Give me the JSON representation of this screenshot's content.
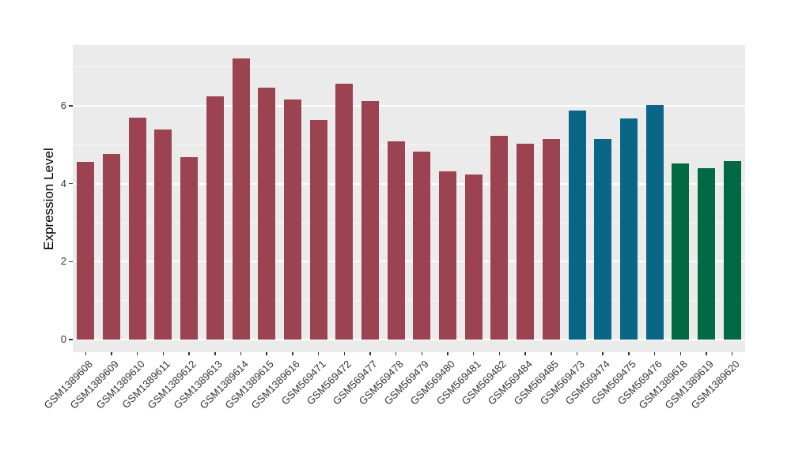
{
  "chart_data": {
    "type": "bar",
    "title": "",
    "xlabel": "",
    "ylabel": "Expression Level",
    "categories": [
      "GSM1389608",
      "GSM1389609",
      "GSM1389610",
      "GSM1389611",
      "GSM1389612",
      "GSM1389613",
      "GSM1389614",
      "GSM1389615",
      "GSM1389616",
      "GSM569471",
      "GSM569472",
      "GSM569477",
      "GSM569478",
      "GSM569479",
      "GSM569480",
      "GSM569481",
      "GSM569482",
      "GSM569484",
      "GSM569485",
      "GSM569473",
      "GSM569474",
      "GSM569475",
      "GSM569476",
      "GSM1389618",
      "GSM1389619",
      "GSM1389620"
    ],
    "values": [
      4.56,
      4.76,
      5.7,
      5.39,
      4.68,
      6.25,
      7.22,
      6.47,
      6.16,
      5.64,
      6.57,
      6.12,
      5.09,
      4.83,
      4.32,
      4.24,
      5.22,
      5.02,
      5.15,
      5.88,
      5.15,
      5.68,
      6.03,
      4.52,
      4.39,
      4.58
    ],
    "groups": [
      "maroon",
      "maroon",
      "maroon",
      "maroon",
      "maroon",
      "maroon",
      "maroon",
      "maroon",
      "maroon",
      "maroon",
      "maroon",
      "maroon",
      "maroon",
      "maroon",
      "maroon",
      "maroon",
      "maroon",
      "maroon",
      "maroon",
      "teal",
      "teal",
      "teal",
      "teal",
      "green",
      "green",
      "green"
    ],
    "group_colors": {
      "maroon": "#9C4351",
      "teal": "#0A6687",
      "green": "#026945"
    },
    "yticks": [
      0,
      2,
      4,
      6
    ],
    "minor_yticks": [
      1,
      3,
      5,
      7
    ],
    "ylim": [
      0,
      7.56
    ],
    "grid": true,
    "legend": false,
    "panel_bg": "#EBEBEB",
    "grid_color": "#FFFFFF",
    "axis_text_color": "#333333"
  }
}
